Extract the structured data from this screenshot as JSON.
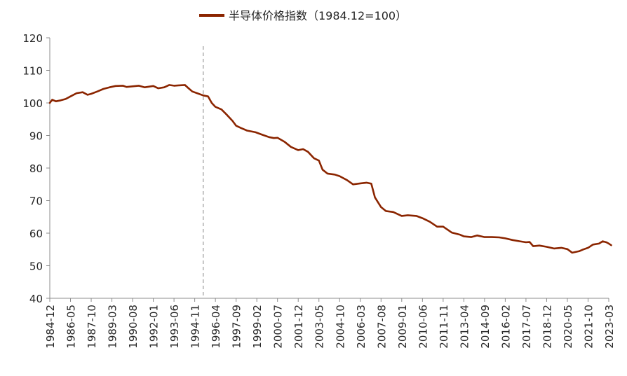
{
  "chart_data": {
    "type": "line",
    "title": "",
    "xlabel": "",
    "ylabel": "",
    "legend": {
      "position": "top-center"
    },
    "grid": false,
    "ylim": [
      40,
      120
    ],
    "y_ticks": [
      40,
      50,
      60,
      70,
      80,
      90,
      100,
      110,
      120
    ],
    "x_ticks": [
      "1984-12",
      "1986-05",
      "1987-10",
      "1989-03",
      "1990-08",
      "1992-01",
      "1993-06",
      "1994-11",
      "1996-04",
      "1997-09",
      "1999-02",
      "2000-07",
      "2001-12",
      "2003-05",
      "2004-10",
      "2006-03",
      "2007-08",
      "2009-01",
      "2010-06",
      "2011-11",
      "2013-04",
      "2014-09",
      "2016-02",
      "2017-07",
      "2018-12",
      "2020-05",
      "2021-10",
      "2023-03"
    ],
    "reference_line": {
      "x": "1995-06",
      "style": "dashed"
    },
    "series": [
      {
        "name": "半导体价格指数（1984.12=100）",
        "color": "#8B2500",
        "points": [
          [
            "1984-12",
            100
          ],
          [
            "1985-02",
            101
          ],
          [
            "1985-05",
            100.5
          ],
          [
            "1985-09",
            100.8
          ],
          [
            "1986-01",
            101.2
          ],
          [
            "1986-05",
            102
          ],
          [
            "1986-10",
            103
          ],
          [
            "1987-03",
            103.3
          ],
          [
            "1987-07",
            102.5
          ],
          [
            "1987-10",
            102.8
          ],
          [
            "1988-03",
            103.5
          ],
          [
            "1988-08",
            104.3
          ],
          [
            "1989-01",
            104.8
          ],
          [
            "1989-06",
            105.2
          ],
          [
            "1989-12",
            105.3
          ],
          [
            "1990-03",
            104.9
          ],
          [
            "1990-08",
            105.1
          ],
          [
            "1991-01",
            105.3
          ],
          [
            "1991-06",
            104.8
          ],
          [
            "1992-01",
            105.2
          ],
          [
            "1992-05",
            104.5
          ],
          [
            "1992-10",
            104.8
          ],
          [
            "1993-02",
            105.5
          ],
          [
            "1993-06",
            105.3
          ],
          [
            "1993-10",
            105.4
          ],
          [
            "1994-03",
            105.5
          ],
          [
            "1994-06",
            104.5
          ],
          [
            "1994-09",
            103.5
          ],
          [
            "1995-01",
            103
          ],
          [
            "1995-06",
            102.3
          ],
          [
            "1995-10",
            102
          ],
          [
            "1996-01",
            100
          ],
          [
            "1996-04",
            98.8
          ],
          [
            "1996-09",
            98
          ],
          [
            "1997-01",
            96.5
          ],
          [
            "1997-06",
            94.5
          ],
          [
            "1997-09",
            93
          ],
          [
            "1998-01",
            92.3
          ],
          [
            "1998-06",
            91.5
          ],
          [
            "1999-01",
            91
          ],
          [
            "1999-06",
            90.3
          ],
          [
            "1999-12",
            89.5
          ],
          [
            "2000-04",
            89.2
          ],
          [
            "2000-07",
            89.3
          ],
          [
            "2001-01",
            88
          ],
          [
            "2001-06",
            86.5
          ],
          [
            "2001-12",
            85.5
          ],
          [
            "2002-04",
            85.8
          ],
          [
            "2002-08",
            85
          ],
          [
            "2003-01",
            83
          ],
          [
            "2003-05",
            82.3
          ],
          [
            "2003-08",
            79.5
          ],
          [
            "2003-12",
            78.3
          ],
          [
            "2004-06",
            78
          ],
          [
            "2004-10",
            77.5
          ],
          [
            "2005-04",
            76.3
          ],
          [
            "2005-09",
            75
          ],
          [
            "2006-03",
            75.3
          ],
          [
            "2006-08",
            75.5
          ],
          [
            "2006-12",
            75.2
          ],
          [
            "2007-03",
            71
          ],
          [
            "2007-08",
            68
          ],
          [
            "2007-12",
            66.8
          ],
          [
            "2008-06",
            66.5
          ],
          [
            "2009-01",
            65.3
          ],
          [
            "2009-06",
            65.5
          ],
          [
            "2010-01",
            65.3
          ],
          [
            "2010-06",
            64.6
          ],
          [
            "2010-12",
            63.5
          ],
          [
            "2011-06",
            62
          ],
          [
            "2011-11",
            62
          ],
          [
            "2012-06",
            60.2
          ],
          [
            "2013-01",
            59.5
          ],
          [
            "2013-04",
            59
          ],
          [
            "2013-10",
            58.8
          ],
          [
            "2014-03",
            59.3
          ],
          [
            "2014-09",
            58.8
          ],
          [
            "2015-03",
            58.8
          ],
          [
            "2015-09",
            58.7
          ],
          [
            "2016-02",
            58.4
          ],
          [
            "2016-08",
            57.9
          ],
          [
            "2017-02",
            57.5
          ],
          [
            "2017-07",
            57.2
          ],
          [
            "2017-10",
            57.3
          ],
          [
            "2018-01",
            56
          ],
          [
            "2018-06",
            56.2
          ],
          [
            "2018-12",
            55.8
          ],
          [
            "2019-06",
            55.3
          ],
          [
            "2019-12",
            55.5
          ],
          [
            "2020-05",
            55.1
          ],
          [
            "2020-09",
            54
          ],
          [
            "2021-03",
            54.5
          ],
          [
            "2021-06",
            55
          ],
          [
            "2021-10",
            55.5
          ],
          [
            "2022-02",
            56.5
          ],
          [
            "2022-07",
            56.8
          ],
          [
            "2022-10",
            57.5
          ],
          [
            "2023-01",
            57.2
          ],
          [
            "2023-03",
            56.8
          ],
          [
            "2023-05",
            56.3
          ]
        ]
      }
    ]
  }
}
